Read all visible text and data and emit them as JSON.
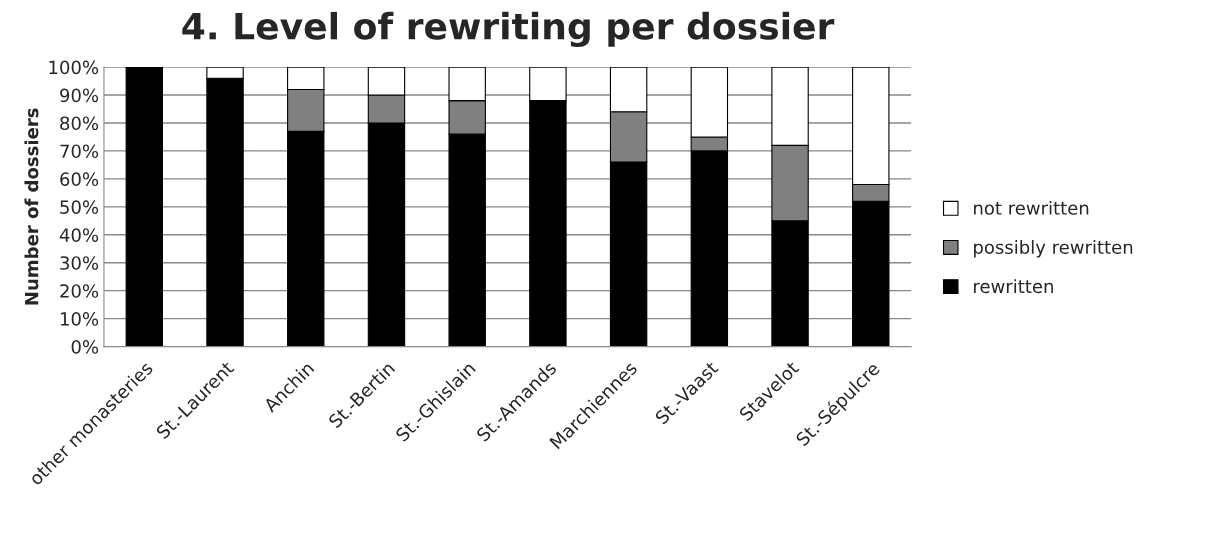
{
  "chart_data": {
    "type": "bar",
    "title": "4. Level of rewriting per dossier",
    "ylabel": "Number of dossiers",
    "categories": [
      "other monasteries",
      "St.-Laurent",
      "Anchin",
      "St.-Bertin",
      "St.-Ghislain",
      "St.-Amands",
      "Marchiennes",
      "St.-Vaast",
      "Stavelot",
      "St.-Sépulcre"
    ],
    "stacked": true,
    "series": [
      {
        "name": "rewritten",
        "color": "#000000",
        "values": [
          100,
          96,
          77,
          80,
          76,
          88,
          66,
          70,
          45,
          52
        ]
      },
      {
        "name": "possibly rewritten",
        "color": "#808080",
        "values": [
          null,
          null,
          15,
          10,
          12,
          null,
          18,
          5,
          27,
          6
        ]
      },
      {
        "name": "not rewritten",
        "color": "#ffffff",
        "values": [
          null,
          4,
          8,
          10,
          12,
          12,
          16,
          25,
          28,
          42
        ]
      }
    ],
    "ylim": [
      0,
      100
    ],
    "yticks": [
      {
        "value": 0,
        "label": "0%"
      },
      {
        "value": 10,
        "label": "10%"
      },
      {
        "value": 20,
        "label": "20%"
      },
      {
        "value": 30,
        "label": "30%"
      },
      {
        "value": 40,
        "label": "40%"
      },
      {
        "value": 50,
        "label": "50%"
      },
      {
        "value": 60,
        "label": "60%"
      },
      {
        "value": 70,
        "label": "70%"
      },
      {
        "value": 80,
        "label": "80%"
      },
      {
        "value": 90,
        "label": "90%"
      },
      {
        "value": 100,
        "label": "100%"
      }
    ],
    "grid": "y",
    "legend": "right"
  }
}
